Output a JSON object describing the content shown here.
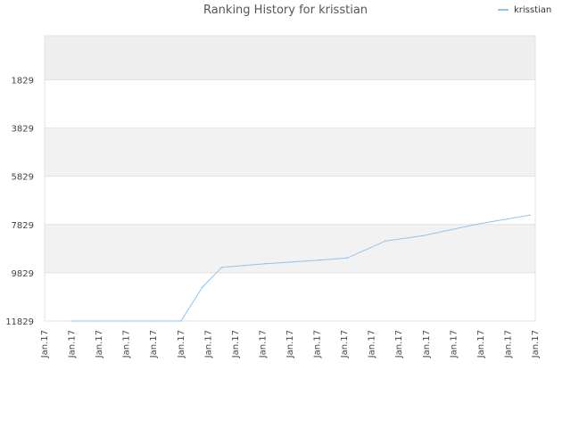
{
  "chart_data": {
    "type": "line",
    "title": "Ranking History for krisstian",
    "xlabel": "",
    "ylabel": "",
    "x_tick_labels": [
      "Jan.17",
      "Jan.17",
      "Jan.17",
      "Jan.17",
      "Jan.17",
      "Jan.17",
      "Jan.17",
      "Jan.17",
      "Jan.17",
      "Jan.17",
      "Jan.17",
      "Jan.17",
      "Jan.17",
      "Jan.17",
      "Jan.17",
      "Jan.17",
      "Jan.17",
      "Jan.17",
      "Jan.17"
    ],
    "y_tick_labels": [
      "1829",
      "3829",
      "5829",
      "7829",
      "9829",
      "11829"
    ],
    "ylim": [
      11829,
      0
    ],
    "y_reversed": true,
    "grid": true,
    "legend_position": "top-right",
    "series": [
      {
        "name": "krisstian",
        "color": "#90c4ee",
        "x": [
          1,
          2,
          3,
          4,
          5,
          5.8,
          6.5,
          7.3,
          8.1,
          9.1,
          10.1,
          11.1,
          12.5,
          13.9,
          15.8,
          17.8
        ],
        "values": [
          11829,
          11829,
          11829,
          11829,
          11829,
          10411,
          9602,
          9527,
          9452,
          9377,
          9303,
          9215,
          8514,
          8291,
          7831,
          7443
        ]
      }
    ]
  }
}
